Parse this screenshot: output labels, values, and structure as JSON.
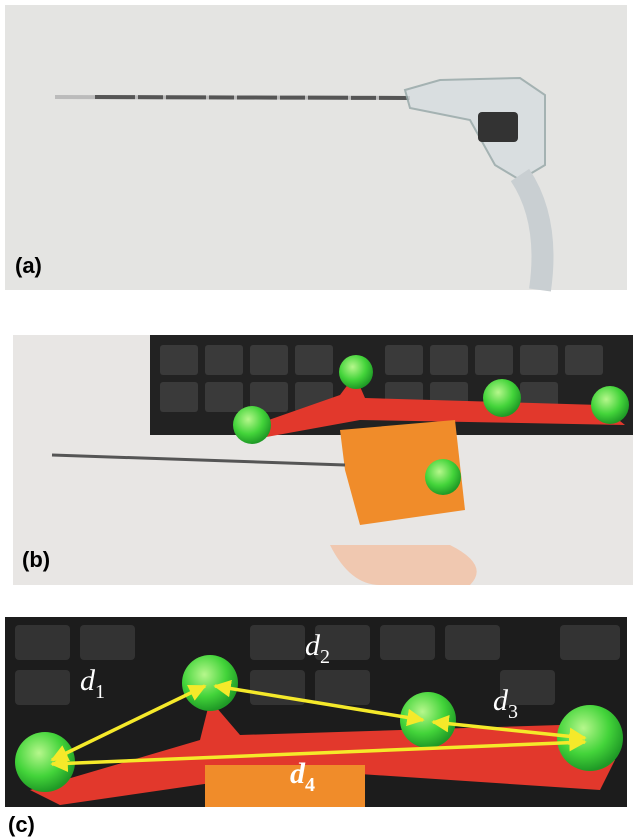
{
  "panels": [
    {
      "label": "(a)"
    },
    {
      "label": "(b)"
    },
    {
      "label": "(c)"
    }
  ],
  "distances": [
    {
      "symbol": "d",
      "subscript": "1"
    },
    {
      "symbol": "d",
      "subscript": "2"
    },
    {
      "symbol": "d",
      "subscript": "3"
    },
    {
      "symbol": "d",
      "subscript": "4"
    }
  ]
}
